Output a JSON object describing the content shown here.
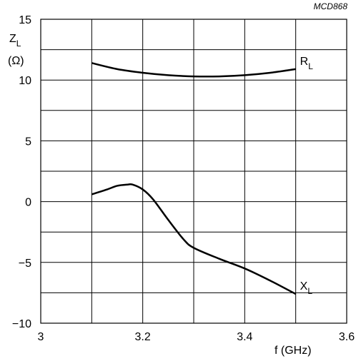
{
  "chart_data": {
    "type": "line",
    "figure_code": "MCD868",
    "xlim": [
      3,
      3.6
    ],
    "ylim": [
      -10,
      15
    ],
    "x_major_ticks": [
      "3",
      "3.2",
      "3.4",
      "3.6"
    ],
    "y_major_ticks": [
      "15",
      "10",
      "5",
      "0",
      "−5",
      "−10"
    ],
    "x_grid_values": [
      3.0,
      3.1,
      3.2,
      3.3,
      3.4,
      3.5,
      3.6
    ],
    "y_grid_values": [
      -10,
      -7.5,
      -5,
      -2.5,
      0,
      2.5,
      5,
      7.5,
      10,
      12.5,
      15
    ],
    "grid": true,
    "xlabel": "f (GHz)",
    "ylabel": {
      "main": "Z",
      "sub": "L",
      "unit": "(Ω)"
    },
    "series": [
      {
        "label_main": "R",
        "label_sub": "L",
        "x": [
          3.1,
          3.15,
          3.2,
          3.25,
          3.3,
          3.35,
          3.4,
          3.45,
          3.5
        ],
        "y": [
          11.4,
          10.9,
          10.6,
          10.4,
          10.3,
          10.3,
          10.4,
          10.6,
          10.9
        ]
      },
      {
        "label_main": "X",
        "label_sub": "L",
        "x": [
          3.1,
          3.13,
          3.15,
          3.17,
          3.18,
          3.2,
          3.22,
          3.25,
          3.28,
          3.3,
          3.35,
          3.4,
          3.45,
          3.5
        ],
        "y": [
          0.6,
          1.0,
          1.3,
          1.4,
          1.4,
          1.0,
          0.2,
          -1.5,
          -3.1,
          -3.8,
          -4.7,
          -5.5,
          -6.5,
          -7.6
        ]
      }
    ]
  }
}
